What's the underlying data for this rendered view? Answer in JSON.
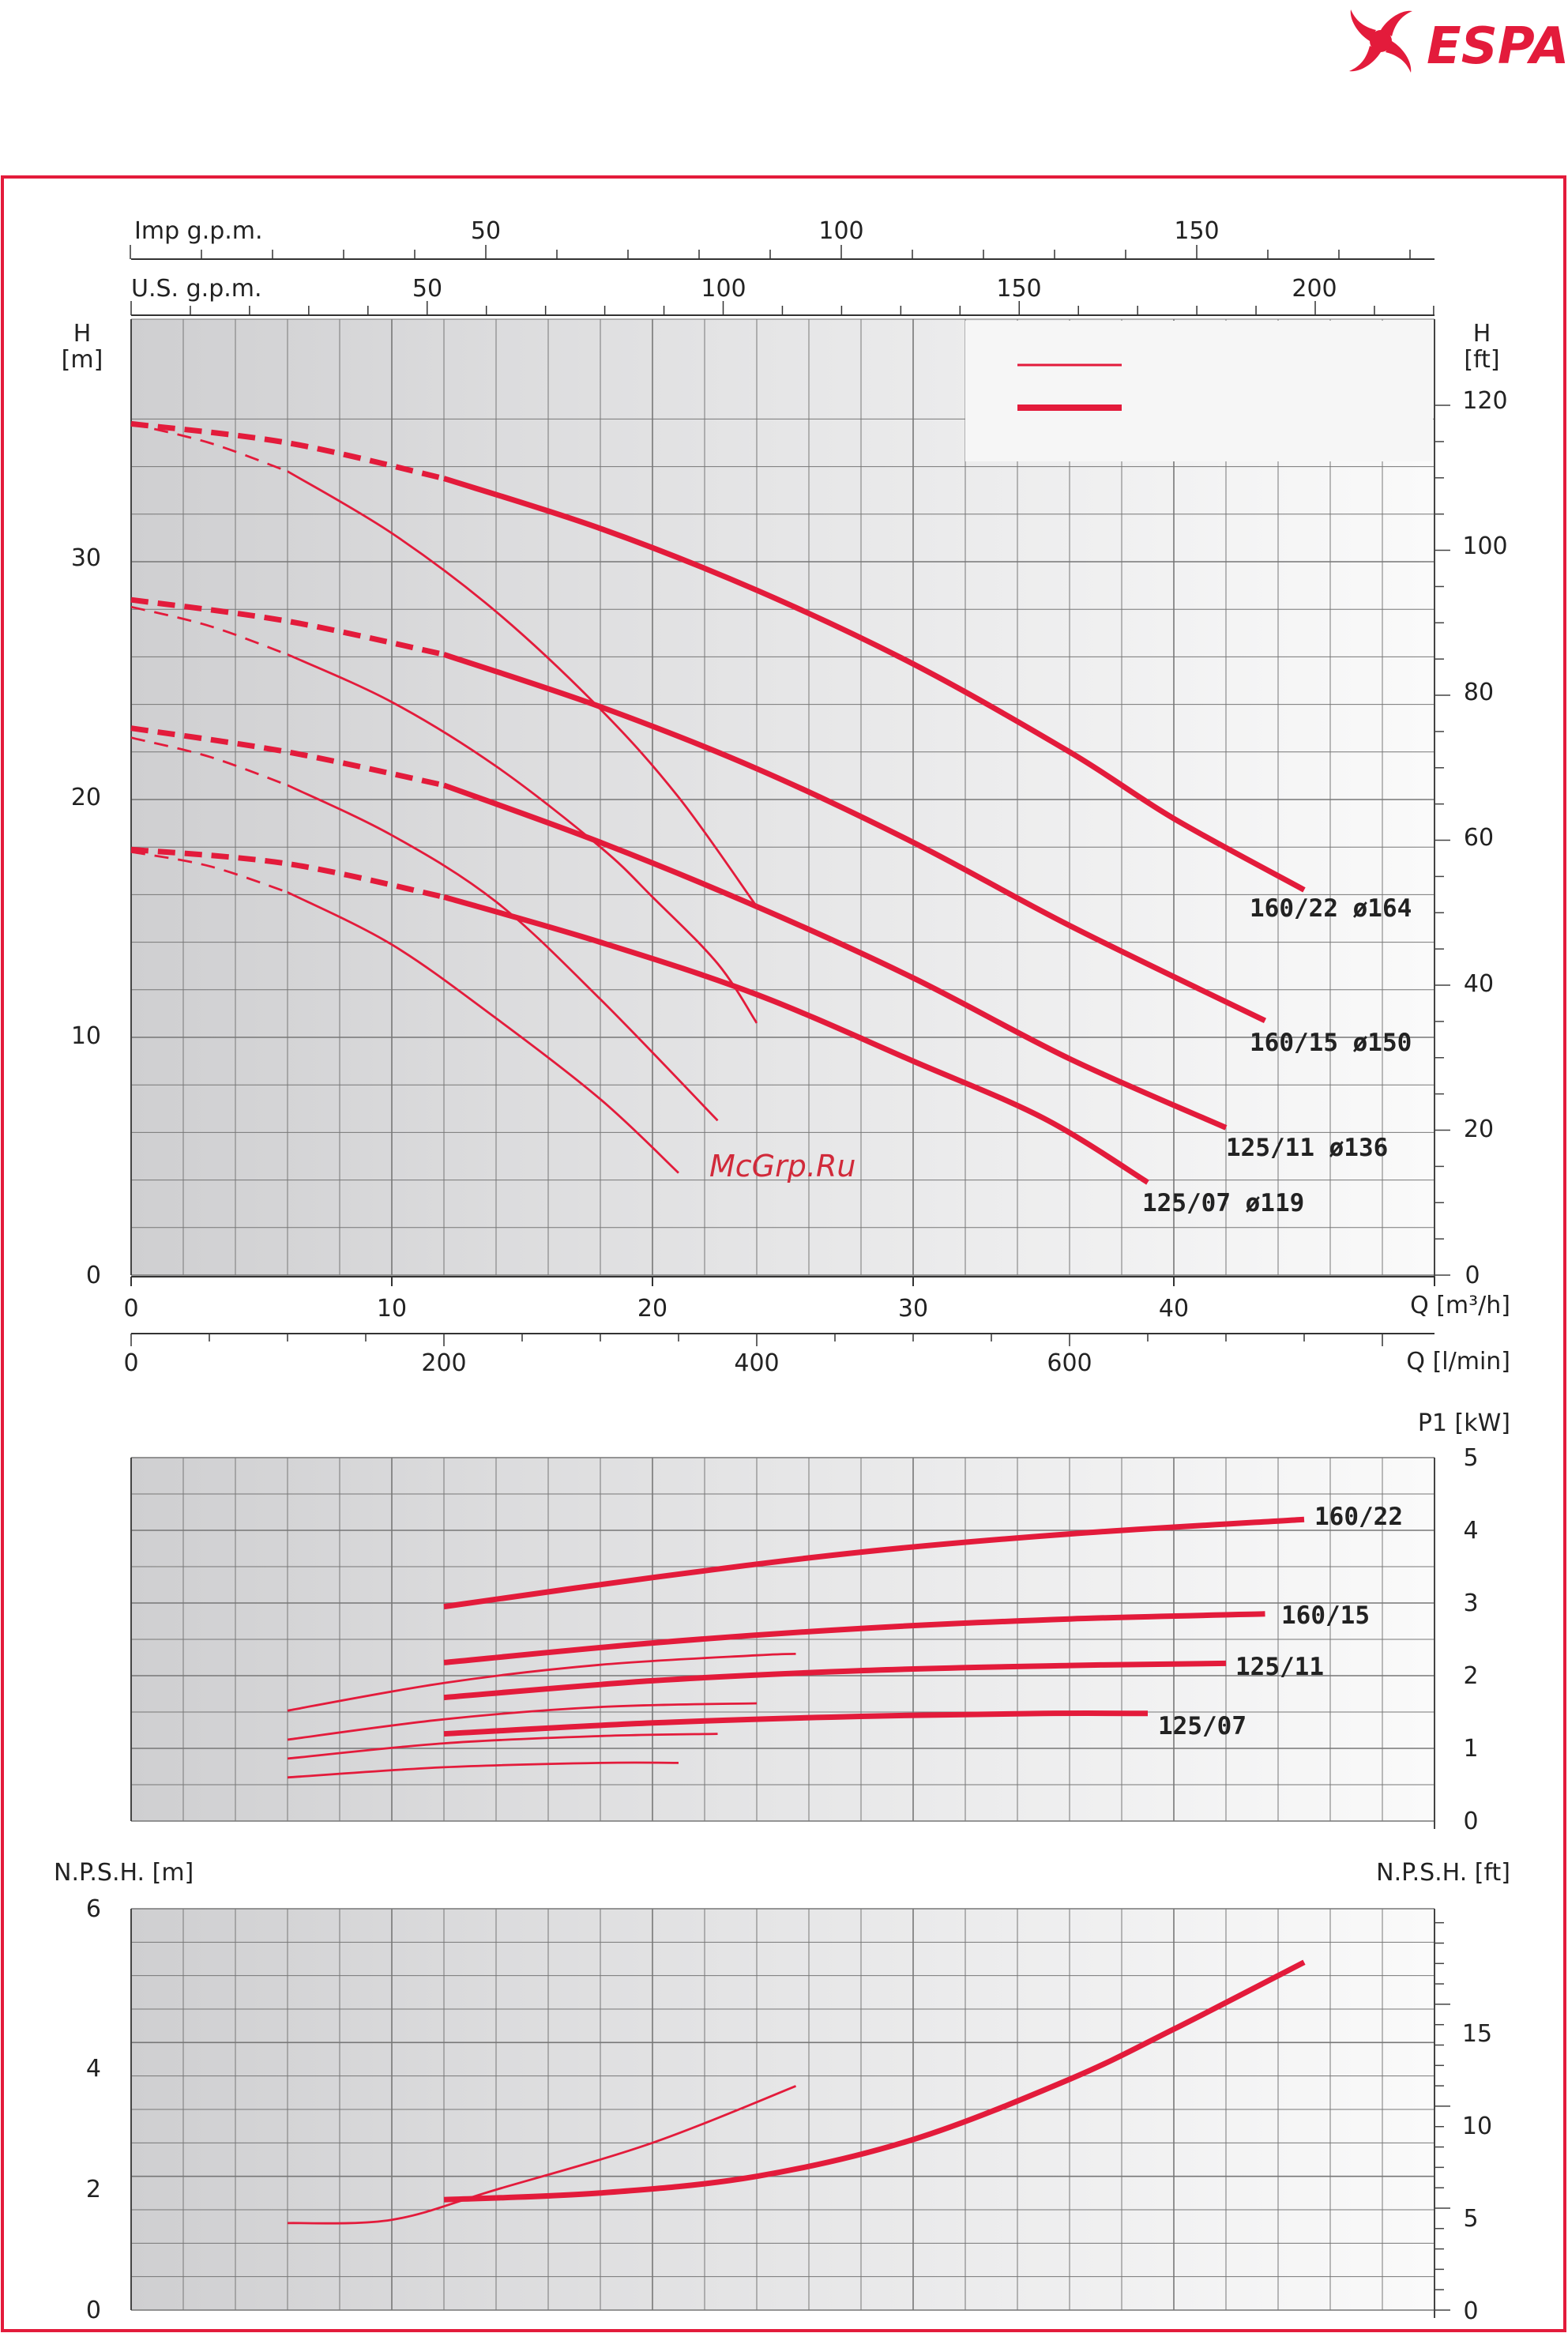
{
  "brand": {
    "name": "ESPA",
    "color": "#e31b3b"
  },
  "watermark": "McGrp.Ru",
  "colors": {
    "curve": "#e31b3b",
    "border": "#e31b3b",
    "grid": "#777777"
  },
  "top_axes": {
    "imp_gpm_label": "Imp g.p.m.",
    "imp_gpm_ticks": [
      "50",
      "100",
      "150"
    ],
    "us_gpm_label": "U.S. g.p.m.",
    "us_gpm_ticks": [
      "50",
      "100",
      "150",
      "200"
    ]
  },
  "head_chart": {
    "y_left_label_1": "H",
    "y_left_label_2": "[m]",
    "y_right_label_1": "H",
    "y_right_label_2": "[ft]",
    "y_left_ticks": [
      "0",
      "10",
      "20",
      "30"
    ],
    "y_right_ticks": [
      "0",
      "20",
      "40",
      "60",
      "80",
      "100",
      "120"
    ],
    "x_ticks_m3h": [
      "0",
      "10",
      "20",
      "30",
      "40"
    ],
    "x_label_m3h": "Q [m³/h]",
    "x_ticks_lmin": [
      "0",
      "200",
      "400",
      "600"
    ],
    "x_label_lmin": "Q [l/min]",
    "curve_labels": [
      "160/22  ø164",
      "160/15  ø150",
      "125/11  ø136",
      "125/07  ø119"
    ]
  },
  "power_chart": {
    "y_label": "P1 [kW]",
    "y_ticks": [
      "0",
      "1",
      "2",
      "3",
      "4",
      "5"
    ],
    "curve_labels": [
      "160/22",
      "160/15",
      "125/11",
      "125/07"
    ]
  },
  "npsh_chart": {
    "y_left_label": "N.P.S.H. [m]",
    "y_right_label": "N.P.S.H. [ft]",
    "y_left_ticks": [
      "0",
      "2",
      "4",
      "6"
    ],
    "y_right_ticks": [
      "0",
      "5",
      "10",
      "15"
    ]
  },
  "chart_data": [
    {
      "type": "line",
      "title": "",
      "xlabel": "Q [m³/h]",
      "ylabel": "H [m]",
      "xlim": [
        0,
        50
      ],
      "ylim": [
        0,
        38
      ],
      "grid": true,
      "series": [
        {
          "name": "160/22  ø164",
          "thick": true,
          "dashed_until": 12,
          "points": [
            [
              0,
              35.8
            ],
            [
              6,
              35.0
            ],
            [
              12,
              33.5
            ],
            [
              18,
              31.4
            ],
            [
              24,
              28.8
            ],
            [
              30,
              25.7
            ],
            [
              36,
              22.0
            ],
            [
              40,
              19.2
            ],
            [
              45,
              16.2
            ]
          ]
        },
        {
          "name": "",
          "thick": false,
          "dashed_until": 6,
          "points": [
            [
              0,
              35.8
            ],
            [
              3,
              35.0
            ],
            [
              6,
              33.8
            ],
            [
              10,
              31.2
            ],
            [
              14,
              27.9
            ],
            [
              18,
              23.8
            ],
            [
              21,
              20.1
            ],
            [
              24,
              15.5
            ]
          ]
        },
        {
          "name": "160/15  ø150",
          "thick": true,
          "dashed_until": 12,
          "points": [
            [
              0,
              28.4
            ],
            [
              6,
              27.5
            ],
            [
              12,
              26.1
            ],
            [
              18,
              23.9
            ],
            [
              24,
              21.3
            ],
            [
              30,
              18.2
            ],
            [
              36,
              14.7
            ],
            [
              43.5,
              10.7
            ]
          ]
        },
        {
          "name": "",
          "thick": false,
          "dashed_until": 6,
          "points": [
            [
              0,
              28.1
            ],
            [
              3,
              27.3
            ],
            [
              6,
              26.1
            ],
            [
              10,
              24.1
            ],
            [
              14,
              21.4
            ],
            [
              18,
              18.0
            ],
            [
              20,
              15.9
            ],
            [
              22.5,
              13.1
            ],
            [
              24,
              10.6
            ]
          ]
        },
        {
          "name": "125/11  ø136",
          "thick": true,
          "dashed_until": 12,
          "points": [
            [
              0,
              23.0
            ],
            [
              6,
              22.0
            ],
            [
              12,
              20.6
            ],
            [
              18,
              18.2
            ],
            [
              24,
              15.5
            ],
            [
              30,
              12.5
            ],
            [
              36,
              9.1
            ],
            [
              42,
              6.2
            ]
          ]
        },
        {
          "name": "",
          "thick": false,
          "dashed_until": 6,
          "points": [
            [
              0,
              22.6
            ],
            [
              3,
              21.8
            ],
            [
              6,
              20.6
            ],
            [
              10,
              18.5
            ],
            [
              14,
              15.7
            ],
            [
              18,
              11.6
            ],
            [
              22.5,
              6.5
            ]
          ]
        },
        {
          "name": "125/07  ø119",
          "thick": true,
          "dashed_until": 12,
          "points": [
            [
              0,
              17.9
            ],
            [
              6,
              17.3
            ],
            [
              12,
              15.9
            ],
            [
              18,
              14.0
            ],
            [
              24,
              11.8
            ],
            [
              30,
              9.0
            ],
            [
              35,
              6.6
            ],
            [
              39,
              3.9
            ]
          ]
        },
        {
          "name": "",
          "thick": false,
          "dashed_until": 6,
          "points": [
            [
              0,
              17.8
            ],
            [
              3,
              17.2
            ],
            [
              6,
              16.1
            ],
            [
              10,
              13.9
            ],
            [
              14,
              10.8
            ],
            [
              18,
              7.4
            ],
            [
              21,
              4.3
            ]
          ]
        }
      ]
    },
    {
      "type": "line",
      "title": "",
      "xlabel": "Q [m³/h]",
      "ylabel": "P1 [kW]",
      "xlim": [
        0,
        50
      ],
      "ylim": [
        0,
        5
      ],
      "grid": true,
      "series": [
        {
          "name": "160/22",
          "thick": true,
          "points": [
            [
              12,
              2.95
            ],
            [
              20,
              3.35
            ],
            [
              28,
              3.7
            ],
            [
              36,
              3.95
            ],
            [
              45,
              4.15
            ]
          ]
        },
        {
          "name": "160/15",
          "thick": true,
          "points": [
            [
              12,
              2.18
            ],
            [
              20,
              2.45
            ],
            [
              28,
              2.65
            ],
            [
              36,
              2.78
            ],
            [
              43.5,
              2.85
            ]
          ]
        },
        {
          "name": "125/11",
          "thick": true,
          "points": [
            [
              12,
              1.7
            ],
            [
              20,
              1.93
            ],
            [
              28,
              2.07
            ],
            [
              36,
              2.14
            ],
            [
              42,
              2.17
            ]
          ]
        },
        {
          "name": "125/07",
          "thick": true,
          "points": [
            [
              12,
              1.2
            ],
            [
              20,
              1.35
            ],
            [
              28,
              1.44
            ],
            [
              35,
              1.48
            ],
            [
              39,
              1.48
            ]
          ]
        },
        {
          "name": "",
          "thick": false,
          "points": [
            [
              6,
              1.52
            ],
            [
              12,
              1.9
            ],
            [
              18,
              2.15
            ],
            [
              24,
              2.28
            ],
            [
              25.5,
              2.3
            ]
          ]
        },
        {
          "name": "",
          "thick": false,
          "points": [
            [
              6,
              1.12
            ],
            [
              12,
              1.4
            ],
            [
              18,
              1.57
            ],
            [
              24,
              1.62
            ]
          ]
        },
        {
          "name": "",
          "thick": false,
          "points": [
            [
              6,
              0.86
            ],
            [
              12,
              1.07
            ],
            [
              18,
              1.17
            ],
            [
              22.5,
              1.2
            ]
          ]
        },
        {
          "name": "",
          "thick": false,
          "points": [
            [
              6,
              0.6
            ],
            [
              12,
              0.74
            ],
            [
              18,
              0.8
            ],
            [
              21,
              0.8
            ]
          ]
        }
      ]
    },
    {
      "type": "line",
      "title": "",
      "xlabel": "Q [m³/h]",
      "ylabel": "N.P.S.H. [m]",
      "xlim": [
        0,
        50
      ],
      "ylim": [
        0,
        6
      ],
      "grid": true,
      "series": [
        {
          "name": "",
          "thick": true,
          "points": [
            [
              12,
              1.65
            ],
            [
              18,
              1.75
            ],
            [
              24,
              2.0
            ],
            [
              30,
              2.55
            ],
            [
              36,
              3.45
            ],
            [
              40,
              4.2
            ],
            [
              45,
              5.2
            ]
          ]
        },
        {
          "name": "",
          "thick": false,
          "points": [
            [
              6,
              1.3
            ],
            [
              10,
              1.35
            ],
            [
              14,
              1.8
            ],
            [
              20,
              2.5
            ],
            [
              25.5,
              3.35
            ]
          ]
        }
      ]
    }
  ]
}
